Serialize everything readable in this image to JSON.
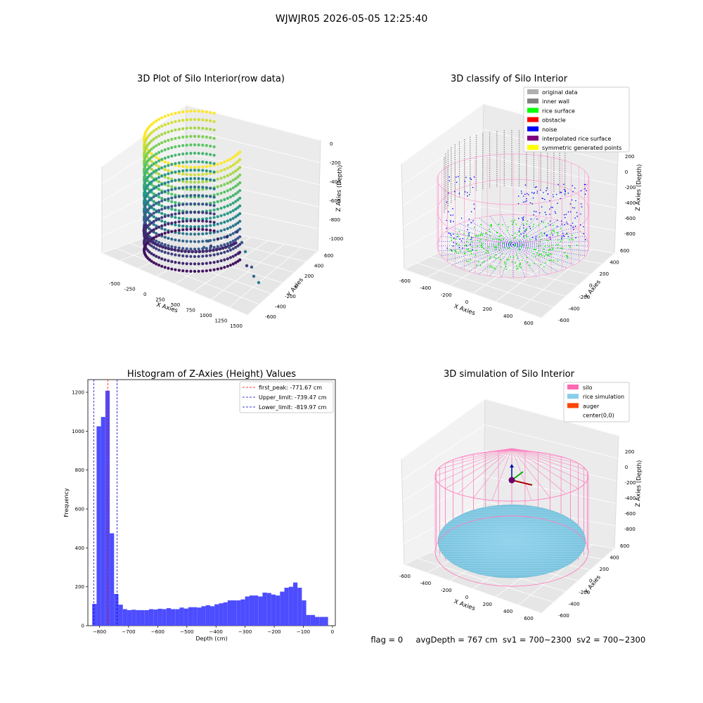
{
  "figure_title": "WJWJR05 2026-05-05 12:25:40",
  "footer": {
    "flag": "flag = 0",
    "avg_depth": "avgDepth = 767 cm",
    "sv1": "sv1 = 700~2300",
    "sv2": "sv2 = 700~2300"
  },
  "chart_data": [
    {
      "type": "scatter",
      "projection": "3d",
      "title": "3D Plot of Silo Interior(row data)",
      "xlabel": "X Axies",
      "ylabel": "Y Axies",
      "zlabel": "Z Axies (Depth)",
      "x_ticks": [
        "-500",
        "-250",
        "0",
        "250",
        "500",
        "750",
        "1000",
        "1250",
        "1500"
      ],
      "y_ticks": [
        "-600",
        "-400",
        "-200",
        "0",
        "200",
        "400",
        "600"
      ],
      "z_ticks": [
        "-1000",
        "-800",
        "-600",
        "-400",
        "-200",
        "0"
      ],
      "xlim": [
        -500,
        1500
      ],
      "ylim": [
        -600,
        600
      ],
      "zlim": [
        -1000,
        0
      ],
      "colormap": "viridis"
    },
    {
      "type": "scatter",
      "projection": "3d",
      "title": "3D classify of Silo Interior",
      "xlabel": "X Axies",
      "ylabel": "Y Axies",
      "zlabel": "Z Axies (Depth)",
      "x_ticks": [
        "-600",
        "-400",
        "-200",
        "0",
        "200",
        "400",
        "600"
      ],
      "y_ticks": [
        "-600",
        "-400",
        "-200",
        "0",
        "200",
        "400",
        "600"
      ],
      "z_ticks": [
        "-800",
        "-600",
        "-400",
        "-200",
        "0",
        "200"
      ],
      "xlim": [
        -600,
        600
      ],
      "ylim": [
        -600,
        600
      ],
      "zlim": [
        -800,
        200
      ],
      "legend_placement": "top-right",
      "legend": [
        {
          "label": "original data",
          "color": "#b0b0b0"
        },
        {
          "label": "inner wall",
          "color": "#808080"
        },
        {
          "label": "rice surface",
          "color": "#00ff00"
        },
        {
          "label": "obstacle",
          "color": "#ff0000"
        },
        {
          "label": "noise",
          "color": "#0000ff"
        },
        {
          "label": "interpolated rice surface",
          "color": "#800080"
        },
        {
          "label": "symmetric generated points",
          "color": "#ffff00"
        }
      ]
    },
    {
      "type": "bar",
      "subtype": "histogram",
      "title": "Histogram of Z-Axies (Height) Values",
      "xlabel": "Depth (cm)",
      "ylabel": "Frequency",
      "xlim": [
        -840,
        10
      ],
      "ylim": [
        0,
        1265
      ],
      "x_ticks": [
        -800,
        -700,
        -600,
        -500,
        -400,
        -300,
        -200,
        -100,
        0
      ],
      "y_ticks": [
        0,
        200,
        400,
        600,
        800,
        1000,
        1200
      ],
      "bar_color": "#4d4dff",
      "bins": [
        {
          "start": -825,
          "end": -810,
          "count": 112
        },
        {
          "start": -810,
          "end": -795,
          "count": 1025
        },
        {
          "start": -795,
          "end": -780,
          "count": 1073
        },
        {
          "start": -780,
          "end": -765,
          "count": 1208
        },
        {
          "start": -765,
          "end": -750,
          "count": 475
        },
        {
          "start": -750,
          "end": -735,
          "count": 163
        },
        {
          "start": -735,
          "end": -720,
          "count": 108
        },
        {
          "start": -720,
          "end": -705,
          "count": 85
        },
        {
          "start": -705,
          "end": -690,
          "count": 80
        },
        {
          "start": -690,
          "end": -675,
          "count": 82
        },
        {
          "start": -675,
          "end": -660,
          "count": 80
        },
        {
          "start": -660,
          "end": -645,
          "count": 80
        },
        {
          "start": -645,
          "end": -630,
          "count": 80
        },
        {
          "start": -630,
          "end": -615,
          "count": 85
        },
        {
          "start": -615,
          "end": -600,
          "count": 83
        },
        {
          "start": -600,
          "end": -585,
          "count": 87
        },
        {
          "start": -585,
          "end": -570,
          "count": 85
        },
        {
          "start": -570,
          "end": -555,
          "count": 90
        },
        {
          "start": -555,
          "end": -540,
          "count": 85
        },
        {
          "start": -540,
          "end": -525,
          "count": 85
        },
        {
          "start": -525,
          "end": -510,
          "count": 93
        },
        {
          "start": -510,
          "end": -495,
          "count": 88
        },
        {
          "start": -495,
          "end": -480,
          "count": 95
        },
        {
          "start": -480,
          "end": -465,
          "count": 95
        },
        {
          "start": -465,
          "end": -450,
          "count": 93
        },
        {
          "start": -450,
          "end": -435,
          "count": 100
        },
        {
          "start": -435,
          "end": -420,
          "count": 105
        },
        {
          "start": -420,
          "end": -405,
          "count": 100
        },
        {
          "start": -405,
          "end": -390,
          "count": 110
        },
        {
          "start": -390,
          "end": -375,
          "count": 115
        },
        {
          "start": -375,
          "end": -360,
          "count": 120
        },
        {
          "start": -360,
          "end": -345,
          "count": 130
        },
        {
          "start": -345,
          "end": -330,
          "count": 130
        },
        {
          "start": -330,
          "end": -315,
          "count": 130
        },
        {
          "start": -315,
          "end": -300,
          "count": 135
        },
        {
          "start": -300,
          "end": -285,
          "count": 150
        },
        {
          "start": -285,
          "end": -270,
          "count": 155
        },
        {
          "start": -270,
          "end": -255,
          "count": 155
        },
        {
          "start": -255,
          "end": -240,
          "count": 150
        },
        {
          "start": -240,
          "end": -225,
          "count": 170
        },
        {
          "start": -225,
          "end": -210,
          "count": 168
        },
        {
          "start": -210,
          "end": -195,
          "count": 160
        },
        {
          "start": -195,
          "end": -180,
          "count": 155
        },
        {
          "start": -180,
          "end": -165,
          "count": 175
        },
        {
          "start": -165,
          "end": -150,
          "count": 195
        },
        {
          "start": -150,
          "end": -135,
          "count": 200
        },
        {
          "start": -135,
          "end": -120,
          "count": 222
        },
        {
          "start": -120,
          "end": -105,
          "count": 195
        },
        {
          "start": -105,
          "end": -90,
          "count": 130
        },
        {
          "start": -90,
          "end": -75,
          "count": 55
        },
        {
          "start": -75,
          "end": -60,
          "count": 55
        },
        {
          "start": -60,
          "end": -45,
          "count": 45
        },
        {
          "start": -45,
          "end": -30,
          "count": 45
        },
        {
          "start": -30,
          "end": -15,
          "count": 45
        }
      ],
      "vlines": [
        {
          "label": "first_peak: -771.67 cm",
          "x": -771.67,
          "color": "#ff0000"
        },
        {
          "label": "Upper_limit: -739.47 cm",
          "x": -739.47,
          "color": "#0000cc"
        },
        {
          "label": "Lower_limit: -819.97 cm",
          "x": -819.97,
          "color": "#0000cc"
        }
      ],
      "legend_placement": "top-right"
    },
    {
      "type": "scatter",
      "projection": "3d",
      "title": "3D simulation of Silo Interior",
      "xlabel": "X Axies",
      "ylabel": "Y Axies",
      "zlabel": "Z Axies (Depth)",
      "x_ticks": [
        "-600",
        "-400",
        "-200",
        "0",
        "200",
        "400",
        "600"
      ],
      "y_ticks": [
        "-600",
        "-400",
        "-200",
        "0",
        "200",
        "400",
        "600"
      ],
      "z_ticks": [
        "-800",
        "-600",
        "-400",
        "-200",
        "0",
        "200"
      ],
      "xlim": [
        -600,
        600
      ],
      "ylim": [
        -600,
        600
      ],
      "zlim": [
        -800,
        200
      ],
      "legend_placement": "top-right",
      "legend": [
        {
          "label": "silo",
          "color": "#ff69b4"
        },
        {
          "label": "rice simulation",
          "color": "#87ceeb"
        },
        {
          "label": "auger",
          "color": "#ff4500"
        },
        {
          "label": "center(0,0)",
          "color": "#ffffff"
        }
      ]
    }
  ]
}
